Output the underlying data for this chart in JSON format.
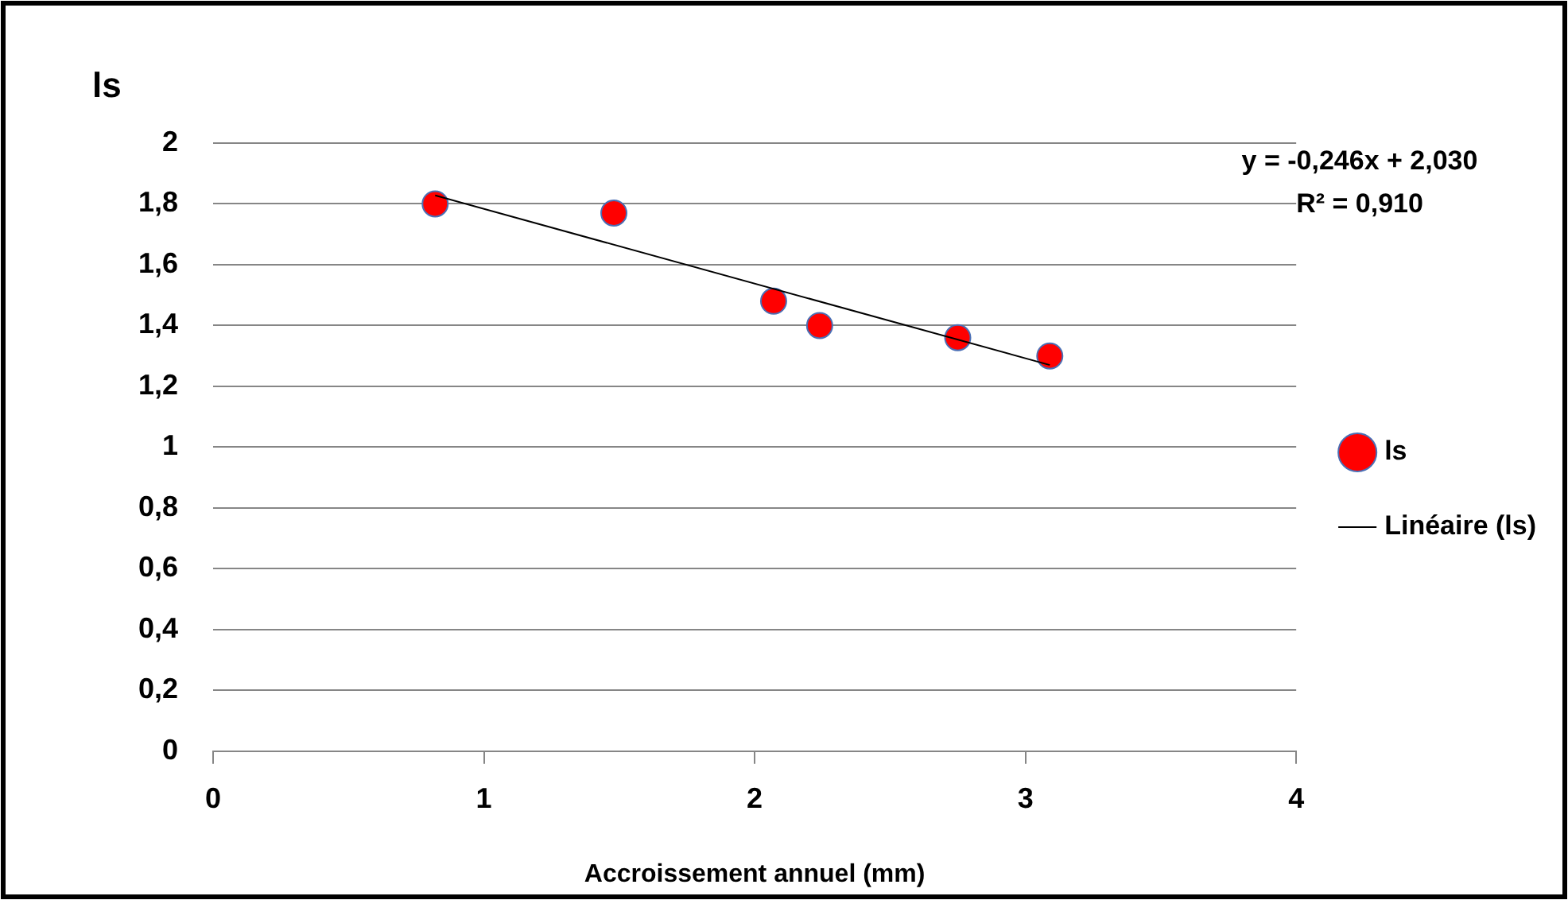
{
  "chart_data": {
    "type": "scatter",
    "xlabel": "Accroissement annuel (mm)",
    "ylabel": "ls",
    "xlim": [
      0,
      4
    ],
    "xticks": [
      0,
      1,
      2,
      3,
      4
    ],
    "ylim": [
      0,
      2
    ],
    "yticks": [
      0,
      {
        "value": 0.2,
        "label": "0,2"
      },
      {
        "value": 0.4,
        "label": "0,4"
      },
      {
        "value": 0.6,
        "label": "0,6"
      },
      {
        "value": 0.8,
        "label": "0,8"
      },
      1,
      {
        "value": 1.2,
        "label": "1,2"
      },
      {
        "value": 1.4,
        "label": "1,4"
      },
      {
        "value": 1.6,
        "label": "1,6"
      },
      {
        "value": 1.8,
        "label": "1,8"
      },
      2
    ],
    "grid": "y",
    "legend": "right",
    "annotations": [
      "y = -0,246x + 2,030",
      "R² = 0,910"
    ],
    "series": [
      {
        "name": "ls",
        "type": "scatter",
        "color": "#ff0000",
        "marker": "circle",
        "x": [
          0.82,
          1.48,
          2.07,
          2.24,
          2.75,
          3.09
        ],
        "values": [
          1.8,
          1.77,
          1.48,
          1.4,
          1.36,
          1.3
        ]
      },
      {
        "name": "Linéaire (ls)",
        "type": "line",
        "color": "#000000",
        "marker": "none",
        "x": [
          0.82,
          3.09
        ],
        "values": [
          1.828,
          1.27
        ]
      }
    ]
  }
}
